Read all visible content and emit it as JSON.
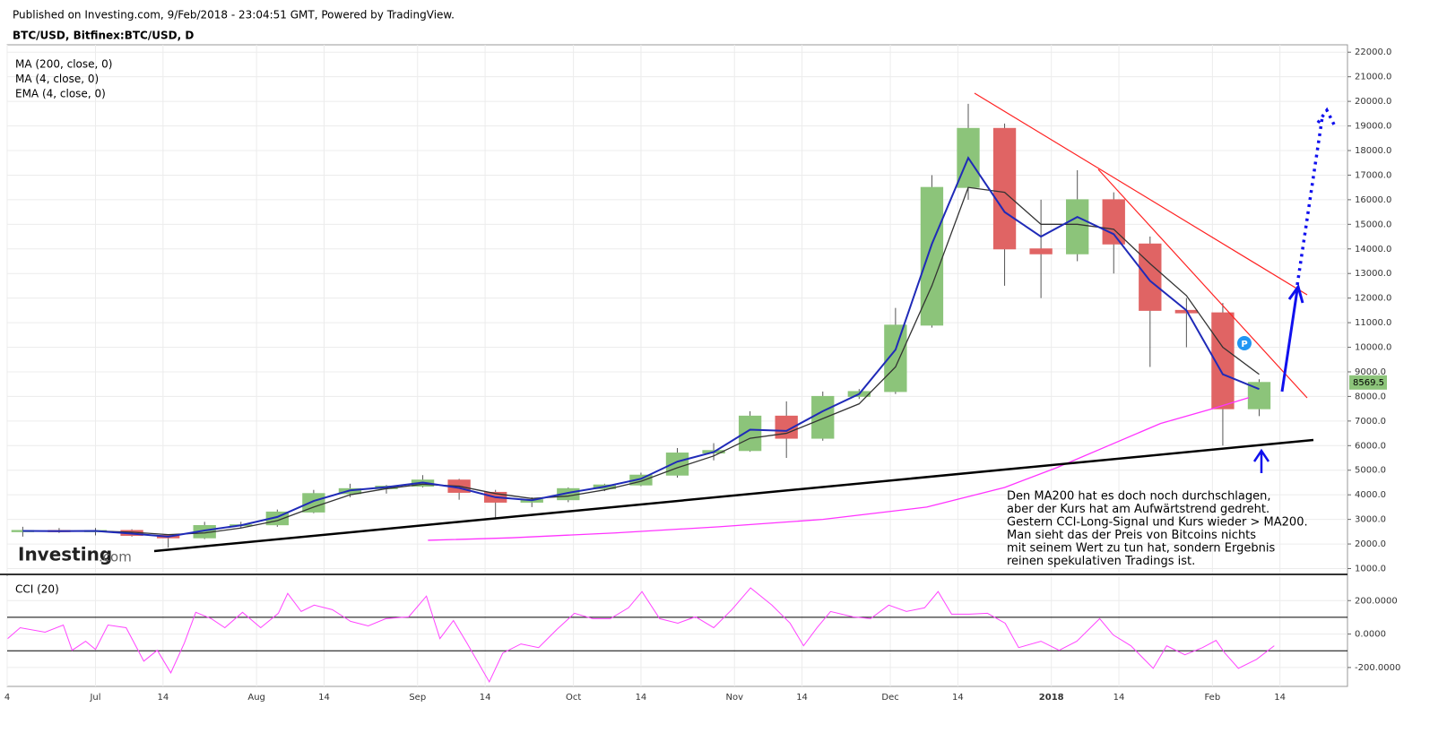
{
  "header": {
    "published": "Published on Investing.com, 9/Feb/2018 - 23:04:51 GMT, Powered by TradingView.",
    "symbol": "BTC/USD, Bitfinex:BTC/USD, D"
  },
  "watermark": {
    "brand": "Investing",
    "suffix": ".com"
  },
  "chart_data": [
    {
      "type": "candlestick",
      "x": [
        -14,
        -7,
        0,
        7,
        14,
        21,
        28,
        35,
        42,
        49,
        56,
        63,
        70,
        77,
        84,
        91,
        98,
        105,
        112,
        119,
        126,
        133,
        140,
        147,
        154,
        161,
        168,
        175,
        182,
        189,
        196,
        203,
        210,
        217,
        224
      ],
      "open": [
        2500,
        2550,
        2500,
        2550,
        2350,
        2250,
        2750,
        2780,
        3300,
        4050,
        4250,
        4350,
        4600,
        4100,
        3700,
        3800,
        4250,
        4400,
        4800,
        5700,
        5800,
        7200,
        6300,
        8000,
        8200,
        10900,
        16500,
        18900,
        14000,
        13800,
        16000,
        14200,
        11500,
        11400,
        7500
      ],
      "high": [
        2700,
        2650,
        2650,
        2600,
        2400,
        2900,
        2900,
        3400,
        4200,
        4450,
        4400,
        4800,
        4650,
        4200,
        3900,
        4300,
        4450,
        4900,
        5900,
        6100,
        7400,
        7800,
        8200,
        8300,
        11600,
        17000,
        19900,
        19100,
        16000,
        17200,
        16300,
        14500,
        12000,
        11800,
        8700
      ],
      "low": [
        2300,
        2450,
        2350,
        2300,
        1850,
        2200,
        2650,
        2700,
        3250,
        3900,
        4050,
        4300,
        3800,
        3000,
        3500,
        3700,
        4150,
        4350,
        4700,
        5400,
        5750,
        5500,
        6200,
        7900,
        8100,
        10800,
        16000,
        12500,
        12000,
        13500,
        13000,
        9200,
        10000,
        6000,
        7200
      ],
      "close": [
        2550,
        2500,
        2550,
        2350,
        2250,
        2750,
        2780,
        3300,
        4050,
        4250,
        4350,
        4600,
        4100,
        3700,
        3800,
        4250,
        4400,
        4800,
        5700,
        5800,
        7200,
        6300,
        8000,
        8200,
        10900,
        16500,
        18900,
        14000,
        13800,
        16000,
        14200,
        11500,
        11400,
        7500,
        8569.5
      ],
      "up_color": "#8cc47a",
      "down_color": "#e06464",
      "indicators": [
        {
          "name": "MA (200, close, 0)",
          "color": "#ff33ff",
          "x": [
            64,
            80,
            100,
            120,
            140,
            160,
            175,
            185,
            195,
            205,
            215,
            222
          ],
          "values": [
            2150,
            2250,
            2450,
            2700,
            3000,
            3500,
            4300,
            5100,
            6000,
            6900,
            7500,
            7950
          ]
        },
        {
          "name": "MA (4, close, 0)",
          "color": "#333333",
          "x": [
            -14,
            -7,
            0,
            7,
            14,
            21,
            28,
            35,
            42,
            49,
            56,
            63,
            70,
            77,
            84,
            91,
            98,
            105,
            112,
            119,
            126,
            133,
            140,
            147,
            154,
            161,
            168,
            175,
            182,
            189,
            196,
            203,
            210,
            217,
            224
          ],
          "values": [
            2520,
            2530,
            2530,
            2480,
            2380,
            2450,
            2650,
            2950,
            3500,
            4000,
            4250,
            4430,
            4350,
            4050,
            3850,
            3950,
            4200,
            4550,
            5100,
            5580,
            6300,
            6500,
            7100,
            7700,
            9200,
            12500,
            16500,
            16300,
            15000,
            15000,
            14800,
            13400,
            12100,
            10000,
            8900
          ]
        },
        {
          "name": "EMA (4, close, 0)",
          "color": "#1f2ab8",
          "x": [
            -14,
            -7,
            0,
            7,
            14,
            21,
            28,
            35,
            42,
            49,
            56,
            63,
            70,
            77,
            84,
            91,
            98,
            105,
            112,
            119,
            126,
            133,
            140,
            147,
            154,
            161,
            168,
            175,
            182,
            189,
            196,
            203,
            210,
            217,
            224
          ],
          "values": [
            2530,
            2520,
            2530,
            2420,
            2300,
            2550,
            2760,
            3100,
            3750,
            4180,
            4310,
            4500,
            4280,
            3900,
            3780,
            4080,
            4330,
            4650,
            5350,
            5740,
            6650,
            6600,
            7400,
            8100,
            9900,
            14200,
            17700,
            15500,
            14500,
            15300,
            14600,
            12700,
            11500,
            8900,
            8300
          ]
        }
      ],
      "annotation": [
        "Den MA200 hat es doch noch durchschlagen,",
        "aber der Kurs hat am Aufwärtstrend gedreht.",
        "Gestern CCI-Long-Signal und Kurs wieder > MA200.",
        "Man sieht das der Preis von Bitcoins nichts",
        "mit seinem Wert zu tun hat, sondern Ergebnis",
        "reinen spekulativen Tradings ist."
      ],
      "xlim": [
        -17,
        241
      ],
      "xticks": [
        {
          "value": -17,
          "label": "4"
        },
        {
          "value": 0,
          "label": "Jul"
        },
        {
          "value": 13,
          "label": "14"
        },
        {
          "value": 31,
          "label": "Aug"
        },
        {
          "value": 44,
          "label": "14"
        },
        {
          "value": 62,
          "label": "Sep"
        },
        {
          "value": 75,
          "label": "14"
        },
        {
          "value": 92,
          "label": "Oct"
        },
        {
          "value": 105,
          "label": "14"
        },
        {
          "value": 123,
          "label": "Nov"
        },
        {
          "value": 136,
          "label": "14"
        },
        {
          "value": 153,
          "label": "Dec"
        },
        {
          "value": 166,
          "label": "14"
        },
        {
          "value": 184,
          "label": "2018"
        },
        {
          "value": 197,
          "label": "14"
        },
        {
          "value": 215,
          "label": "Feb"
        },
        {
          "value": 228,
          "label": "14"
        }
      ],
      "ylim": [
        800,
        22300
      ],
      "yticks": [
        {
          "value": 1000,
          "label": "1000.0"
        },
        {
          "value": 2000,
          "label": "2000.0"
        },
        {
          "value": 3000,
          "label": "3000.0"
        },
        {
          "value": 4000,
          "label": "4000.0"
        },
        {
          "value": 5000,
          "label": "5000.0"
        },
        {
          "value": 6000,
          "label": "6000.0"
        },
        {
          "value": 7000,
          "label": "7000.0"
        },
        {
          "value": 8000,
          "label": "8000.0"
        },
        {
          "value": 9000,
          "label": "9000.0"
        },
        {
          "value": 10000,
          "label": "10000.0"
        },
        {
          "value": 11000,
          "label": "11000.0"
        },
        {
          "value": 12000,
          "label": "12000.0"
        },
        {
          "value": 13000,
          "label": "13000.0"
        },
        {
          "value": 14000,
          "label": "14000.0"
        },
        {
          "value": 15000,
          "label": "15000.0"
        },
        {
          "value": 16000,
          "label": "16000.0"
        },
        {
          "value": 17000,
          "label": "17000.0"
        },
        {
          "value": 18000,
          "label": "18000.0"
        },
        {
          "value": 19000,
          "label": "19000.0"
        },
        {
          "value": 20000,
          "label": "20000.0"
        },
        {
          "value": 21000,
          "label": "21000.0"
        },
        {
          "value": 22000,
          "label": "22000.0"
        }
      ],
      "grid": true
    },
    {
      "type": "line",
      "title": "CCI (20)",
      "color": "#ff44ff",
      "x": [
        -16.9,
        -14.5,
        -9.7,
        -6.2,
        -4.5,
        -1.9,
        0,
        2.4,
        5.9,
        9.3,
        11.9,
        14.5,
        17.1,
        19.3,
        22.3,
        24.9,
        28.3,
        31.8,
        35.2,
        37,
        39.6,
        42.1,
        45.6,
        49.1,
        52.5,
        55.9,
        60.3,
        63.7,
        66.3,
        68.9,
        71.5,
        75.8,
        78.4,
        81.9,
        85.3,
        88.8,
        92.2,
        95.7,
        99.1,
        102.6,
        105.2,
        108.6,
        112.1,
        115.5,
        119,
        122.5,
        126.1,
        130.2,
        133.7,
        136.3,
        138.9,
        141.5,
        145.8,
        149.2,
        152.7,
        156.1,
        159.6,
        162.2,
        164.8,
        168.2,
        171.7,
        175.1,
        177.7,
        182,
        185.5,
        188.9,
        193.3,
        195.9,
        199.3,
        203.6,
        206.2,
        209.7,
        213.1,
        215.7,
        217.4,
        220,
        223.5,
        226.9
      ],
      "values": [
        -27,
        38,
        11,
        54,
        -97,
        -43,
        -92,
        54,
        38,
        -162,
        -97,
        -232,
        -54,
        130,
        92,
        38,
        130,
        38,
        124,
        243,
        135,
        173,
        146,
        76,
        49,
        92,
        103,
        227,
        -27,
        81,
        -54,
        -286,
        -114,
        -59,
        -81,
        27,
        124,
        92,
        92,
        157,
        254,
        92,
        65,
        103,
        38,
        146,
        276,
        173,
        65,
        -70,
        38,
        135,
        103,
        92,
        173,
        135,
        157,
        254,
        119,
        119,
        124,
        65,
        -81,
        -43,
        -97,
        -43,
        92,
        -5,
        -70,
        -205,
        -70,
        -124,
        -81,
        -38,
        -114,
        -205,
        -151,
        -70
      ],
      "levels": [
        100,
        -100
      ],
      "ylim": [
        -313,
        346
      ],
      "yticks": [
        {
          "value": 200,
          "label": "200.0000"
        },
        {
          "value": 0,
          "label": "0.0000"
        },
        {
          "value": -200,
          "label": "-200.0000"
        }
      ],
      "grid": true
    }
  ]
}
